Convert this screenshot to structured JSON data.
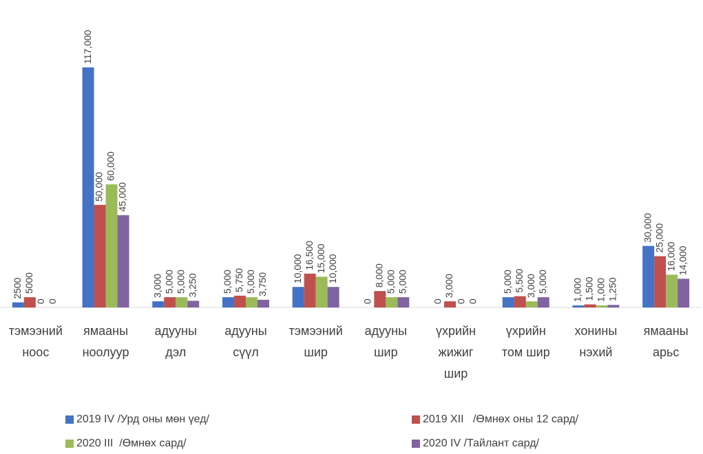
{
  "chart_data": {
    "type": "bar",
    "categories": [
      [
        "тэмээний",
        "ноос"
      ],
      [
        "ямааны",
        "ноолуур"
      ],
      [
        "адууны",
        "дэл"
      ],
      [
        "адууны",
        "сүүл"
      ],
      [
        "тэмээний",
        "шир"
      ],
      [
        "адууны",
        "шир"
      ],
      [
        "үхрийн",
        "жижиг",
        "шир"
      ],
      [
        "үхрийн",
        "том шир"
      ],
      [
        "хонины",
        "нэхий"
      ],
      [
        "ямааны",
        "арьс"
      ]
    ],
    "series": [
      {
        "name": "2019 IV /Урд оны мөн үед/",
        "color": "#4472c4",
        "values": [
          2500,
          117000,
          3000,
          5000,
          10000,
          0,
          0,
          5000,
          1000,
          30000
        ],
        "value_labels": [
          "2500",
          "117,000",
          "3,000",
          "5,000",
          "10,000",
          "0",
          "0",
          "5,000",
          "1,000",
          "30,000"
        ]
      },
      {
        "name": "2019 XII   /Өмнөх оны 12 сард/",
        "color": "#c0504d",
        "values": [
          5000,
          50000,
          5000,
          5750,
          16500,
          8000,
          3000,
          5500,
          1500,
          25000
        ],
        "value_labels": [
          "5000",
          "50,000",
          "5,000",
          "5,750",
          "16,500",
          "8,000",
          "3,000",
          "5,500",
          "1,500",
          "25,000"
        ]
      },
      {
        "name": "2020 III  /Өмнөх сард/",
        "color": "#9bbb59",
        "values": [
          0,
          60000,
          5000,
          5000,
          15000,
          5000,
          0,
          3000,
          1000,
          16000
        ],
        "value_labels": [
          "0",
          "60,000",
          "5,000",
          "5,000",
          "15,000",
          "5,000",
          "0",
          "3,000",
          "1,000",
          "16,000"
        ]
      },
      {
        "name": "2020 IV /Тайлант сард/",
        "color": "#8064a2",
        "values": [
          0,
          45000,
          3250,
          3750,
          10000,
          5000,
          0,
          5000,
          1250,
          14000
        ],
        "value_labels": [
          "0",
          "45,000",
          "3,250",
          "3,750",
          "10,000",
          "5,000",
          "0",
          "5,000",
          "1,250",
          "14,000"
        ]
      }
    ]
  }
}
